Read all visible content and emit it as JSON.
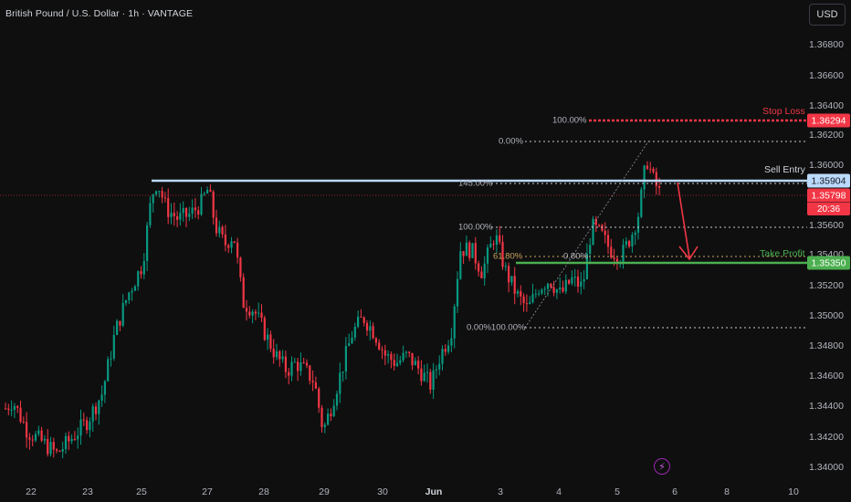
{
  "header": {
    "title": "British Pound / U.S. Dollar · 1h · VANTAGE",
    "currency_button": "USD"
  },
  "price_axis": {
    "ticks": [
      "1.36800",
      "1.36600",
      "1.36400",
      "1.36200",
      "1.36000",
      "1.35600",
      "1.35400",
      "1.35200",
      "1.35000",
      "1.34800",
      "1.34600",
      "1.34400",
      "1.34200",
      "1.34000"
    ]
  },
  "time_axis": {
    "ticks": [
      "22",
      "23",
      "25",
      "27",
      "28",
      "29",
      "30",
      "Jun",
      "3",
      "4",
      "5",
      "6",
      "8",
      "10"
    ]
  },
  "badges": {
    "stop_loss_price": "1.36294",
    "sell_entry_price": "1.35904",
    "current_price": "1.35798",
    "countdown": "20:36",
    "take_profit_price": "1.35350"
  },
  "labels": {
    "stop_loss": "Stop Loss",
    "sell_entry": "Sell Entry",
    "take_profit": "Take Profit"
  },
  "fib_labels": {
    "top_100": "100.00%",
    "zero": "0.00%",
    "ext_145": "145.00%",
    "mid_100": "100.00%",
    "fib_618": "61.80%",
    "fib_080": "0.80%",
    "bottom": "0.00%100.00%"
  },
  "colors": {
    "background": "#0f0f0f",
    "bull": "#089981",
    "bear": "#f23645",
    "stop_loss": "#f23645",
    "sell_entry": "#bbd9fb",
    "take_profit": "#4caf50",
    "flash_icon": "#9c27b0"
  },
  "icons": {
    "flash": "lightning-icon"
  }
}
